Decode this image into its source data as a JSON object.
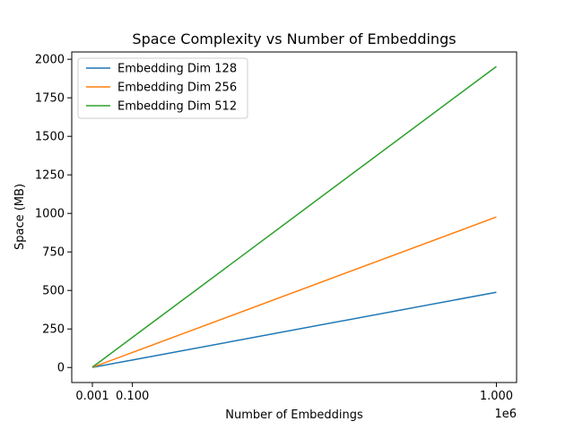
{
  "chart_data": {
    "type": "line",
    "title": "Space Complexity vs Number of Embeddings",
    "xlabel": "Number of Embeddings",
    "ylabel": "Space (MB)",
    "x_offset_text": "1e6",
    "xlim": [
      -0.05,
      1.05
    ],
    "ylim": [
      -97.5,
      2047.5
    ],
    "x_ticks": [
      {
        "value": 0.001,
        "label": "0.001"
      },
      {
        "value": 0.1,
        "label": "0.100"
      },
      {
        "value": 1.0,
        "label": "1.000"
      }
    ],
    "y_ticks": [
      {
        "value": 0,
        "label": "0"
      },
      {
        "value": 250,
        "label": "250"
      },
      {
        "value": 500,
        "label": "500"
      },
      {
        "value": 750,
        "label": "750"
      },
      {
        "value": 1000,
        "label": "1000"
      },
      {
        "value": 1250,
        "label": "1250"
      },
      {
        "value": 1500,
        "label": "1500"
      },
      {
        "value": 1750,
        "label": "1750"
      },
      {
        "value": 2000,
        "label": "2000"
      }
    ],
    "x": [
      0.001,
      0.01,
      0.1,
      1.0
    ],
    "series": [
      {
        "name": "Embedding Dim 128",
        "color": "#1f77b4",
        "values": [
          0.49,
          4.88,
          48.83,
          488.28
        ]
      },
      {
        "name": "Embedding Dim 256",
        "color": "#ff7f0e",
        "values": [
          0.98,
          9.77,
          97.66,
          976.56
        ]
      },
      {
        "name": "Embedding Dim 512",
        "color": "#2ca02c",
        "values": [
          1.95,
          19.53,
          195.31,
          1953.13
        ]
      }
    ],
    "legend_position": "upper-left",
    "grid": false
  }
}
